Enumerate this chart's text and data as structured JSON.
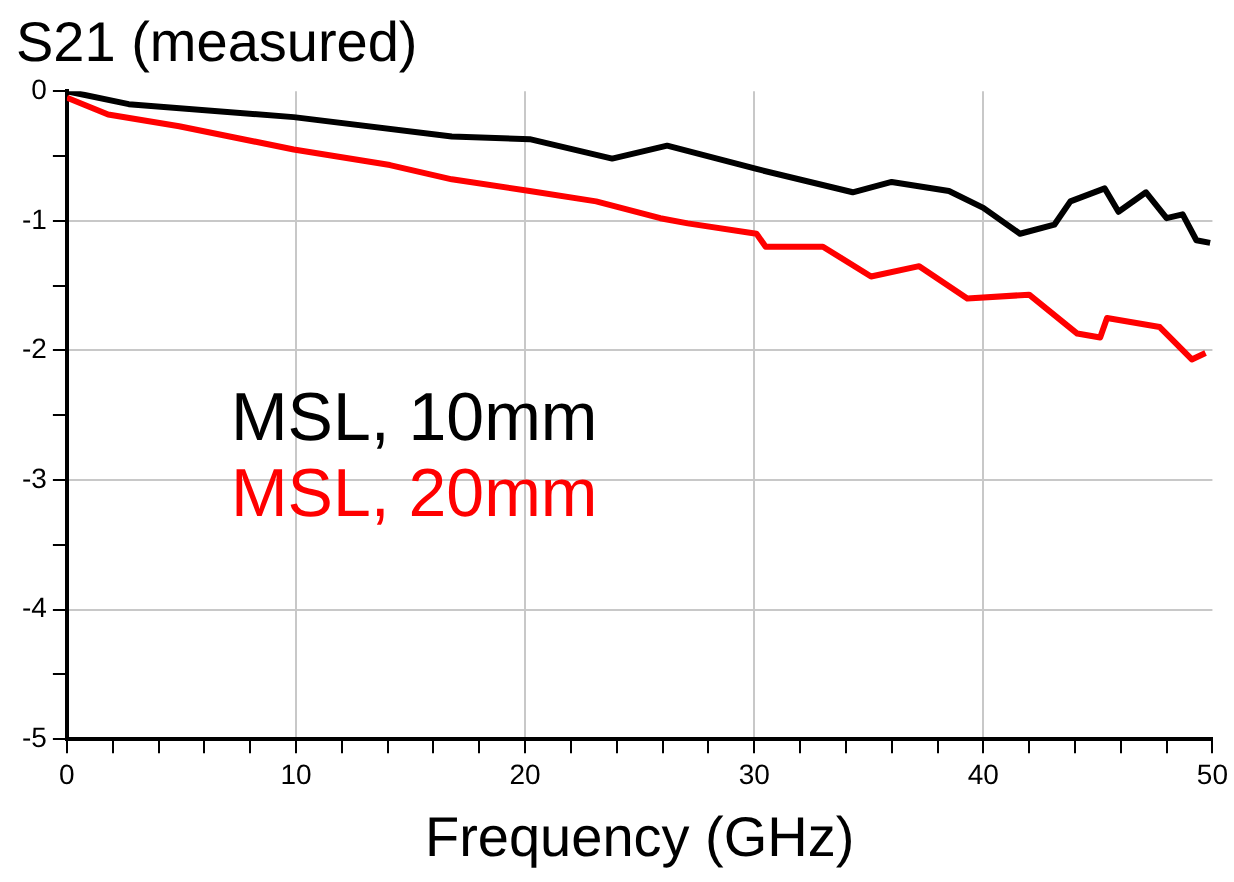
{
  "chart_data": {
    "type": "line",
    "title": "S21 (measured)",
    "xlabel": "Frequency (GHz)",
    "xlim": [
      0,
      50
    ],
    "ylim": [
      -5,
      0
    ],
    "xticks": [
      0,
      {
        "value": 2,
        "label": null
      },
      {
        "value": 4,
        "label": null
      },
      {
        "value": 6,
        "label": null
      },
      {
        "value": 8,
        "label": null
      },
      10,
      {
        "value": 12,
        "label": null
      },
      {
        "value": 14,
        "label": null
      },
      {
        "value": 16,
        "label": null
      },
      {
        "value": 18,
        "label": null
      },
      20,
      {
        "value": 22,
        "label": null
      },
      {
        "value": 24,
        "label": null
      },
      {
        "value": 26,
        "label": null
      },
      {
        "value": 28,
        "label": null
      },
      30,
      {
        "value": 32,
        "label": null
      },
      {
        "value": 34,
        "label": null
      },
      {
        "value": 36,
        "label": null
      },
      {
        "value": 38,
        "label": null
      },
      40,
      {
        "value": 42,
        "label": null
      },
      {
        "value": 44,
        "label": null
      },
      {
        "value": 46,
        "label": null
      },
      {
        "value": 48,
        "label": null
      },
      50
    ],
    "yticks": [
      -5,
      {
        "value": -4.5,
        "label": null
      },
      -4,
      {
        "value": -3.5,
        "label": null
      },
      -3,
      {
        "value": -2.5,
        "label": null
      },
      -2,
      {
        "value": -1.5,
        "label": null
      },
      -1,
      {
        "value": -0.5,
        "label": null
      },
      0
    ],
    "grid": true,
    "legend": "left",
    "marker": "none",
    "line_style": "solid",
    "series": [
      {
        "name": "MSL, 10mm",
        "color": "#000000",
        "x": [
          0,
          2.7,
          9.9,
          16.8,
          20.2,
          23.8,
          26.2,
          30.1,
          34.3,
          36.0,
          38.5,
          40.0,
          41.6,
          43.1,
          43.8,
          45.3,
          45.9,
          47.1,
          48.0,
          48.7,
          49.3,
          49.9
        ],
        "values": [
          0,
          -0.1,
          -0.2,
          -0.35,
          -0.37,
          -0.52,
          -0.42,
          -0.6,
          -0.78,
          -0.7,
          -0.77,
          -0.9,
          -1.1,
          -1.03,
          -0.85,
          -0.75,
          -0.93,
          -0.78,
          -0.98,
          -0.95,
          -1.15,
          -1.17
        ]
      },
      {
        "name": "MSL, 20mm",
        "color": "#ff0000",
        "x": [
          0,
          1.8,
          4.9,
          9.9,
          14.1,
          16.8,
          20.2,
          23.1,
          25.9,
          27.1,
          30.1,
          30.5,
          33.0,
          35.1,
          37.2,
          39.3,
          42.0,
          44.1,
          45.1,
          45.4,
          47.7,
          49.1,
          49.7
        ],
        "values": [
          -0.05,
          -0.18,
          -0.27,
          -0.45,
          -0.57,
          -0.68,
          -0.77,
          -0.85,
          -0.98,
          -1.02,
          -1.1,
          -1.2,
          -1.2,
          -1.43,
          -1.35,
          -1.6,
          -1.57,
          -1.87,
          -1.9,
          -1.75,
          -1.82,
          -2.07,
          -2.02
        ]
      }
    ]
  }
}
